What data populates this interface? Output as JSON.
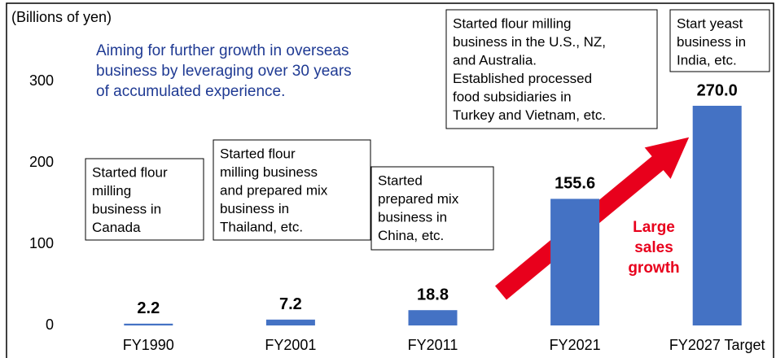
{
  "chart_data": {
    "type": "bar",
    "y_axis_label": "(Billions of yen)",
    "subtitle": [
      "Aiming for further growth in overseas",
      "business by leveraging over 30 years",
      "of accumulated experience."
    ],
    "categories": [
      "FY1990",
      "FY2001",
      "FY2011",
      "FY2021",
      "FY2027 Target"
    ],
    "values": [
      2.2,
      7.2,
      18.8,
      155.6,
      270.0
    ],
    "value_labels": [
      "2.2",
      "7.2",
      "18.8",
      "155.6",
      "270.0"
    ],
    "color": "#4472c4",
    "ylim": [
      0,
      300
    ],
    "yticks": [
      0,
      100,
      200,
      300
    ],
    "grid": false,
    "annotations": [
      [
        "Started flour",
        "milling",
        "business in",
        "Canada"
      ],
      [
        "Started flour",
        "milling business",
        "and prepared mix",
        "business in",
        "Thailand, etc."
      ],
      [
        "Started",
        "prepared mix",
        "business in",
        "China, etc."
      ],
      [
        "Started flour milling",
        "business in the U.S., NZ,",
        "and Australia.",
        "Established processed",
        "food subsidiaries in",
        "Turkey and Vietnam, etc."
      ],
      [
        "Start yeast",
        "business in",
        "India, etc."
      ]
    ],
    "arrow_text": [
      "Large",
      "sales",
      "growth"
    ]
  }
}
